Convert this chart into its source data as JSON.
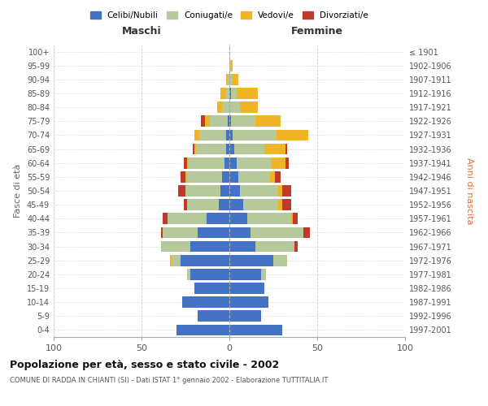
{
  "age_groups": [
    "0-4",
    "5-9",
    "10-14",
    "15-19",
    "20-24",
    "25-29",
    "30-34",
    "35-39",
    "40-44",
    "45-49",
    "50-54",
    "55-59",
    "60-64",
    "65-69",
    "70-74",
    "75-79",
    "80-84",
    "85-89",
    "90-94",
    "95-99",
    "100+"
  ],
  "birth_years": [
    "1997-2001",
    "1992-1996",
    "1987-1991",
    "1982-1986",
    "1977-1981",
    "1972-1976",
    "1967-1971",
    "1962-1966",
    "1957-1961",
    "1952-1956",
    "1947-1951",
    "1942-1946",
    "1937-1941",
    "1932-1936",
    "1927-1931",
    "1922-1926",
    "1917-1921",
    "1912-1916",
    "1907-1911",
    "1902-1906",
    "≤ 1901"
  ],
  "maschi": {
    "celibi": [
      30,
      18,
      27,
      20,
      22,
      28,
      22,
      18,
      13,
      6,
      5,
      4,
      3,
      2,
      2,
      1,
      0,
      0,
      0,
      0,
      0
    ],
    "coniugati": [
      0,
      0,
      0,
      0,
      2,
      5,
      17,
      20,
      22,
      18,
      20,
      20,
      20,
      17,
      15,
      10,
      4,
      2,
      1,
      0,
      0
    ],
    "vedovi": [
      0,
      0,
      0,
      0,
      0,
      1,
      0,
      0,
      0,
      0,
      0,
      1,
      1,
      1,
      3,
      3,
      3,
      3,
      1,
      0,
      0
    ],
    "divorziati": [
      0,
      0,
      0,
      0,
      0,
      0,
      0,
      1,
      3,
      2,
      4,
      3,
      2,
      1,
      0,
      2,
      0,
      0,
      0,
      0,
      0
    ]
  },
  "femmine": {
    "nubili": [
      30,
      18,
      22,
      20,
      18,
      25,
      15,
      12,
      10,
      8,
      6,
      5,
      4,
      3,
      2,
      1,
      0,
      1,
      0,
      0,
      0
    ],
    "coniugate": [
      0,
      0,
      0,
      0,
      3,
      8,
      22,
      30,
      25,
      20,
      22,
      18,
      20,
      17,
      25,
      14,
      6,
      3,
      2,
      1,
      0
    ],
    "vedove": [
      0,
      0,
      0,
      0,
      0,
      0,
      0,
      0,
      1,
      2,
      2,
      3,
      8,
      12,
      18,
      14,
      10,
      12,
      3,
      1,
      0
    ],
    "divorziate": [
      0,
      0,
      0,
      0,
      0,
      0,
      2,
      4,
      3,
      5,
      5,
      3,
      2,
      1,
      0,
      0,
      0,
      0,
      0,
      0,
      0
    ]
  },
  "colors": {
    "celibi_nubili": "#4472c4",
    "coniugati": "#b5c99a",
    "vedovi": "#f0b429",
    "divorziati": "#c0392b"
  },
  "title_main": "Popolazione per età, sesso e stato civile - 2002",
  "title_sub": "COMUNE DI RADDA IN CHIANTI (SI) - Dati ISTAT 1° gennaio 2002 - Elaborazione TUTTITALIA.IT",
  "xlabel_maschi": "Maschi",
  "xlabel_femmine": "Femmine",
  "ylabel_left": "Fasce di età",
  "ylabel_right": "Anni di nascita",
  "xlim": 100,
  "legend_labels": [
    "Celibi/Nubili",
    "Coniugati/e",
    "Vedovi/e",
    "Divorziati/e"
  ]
}
